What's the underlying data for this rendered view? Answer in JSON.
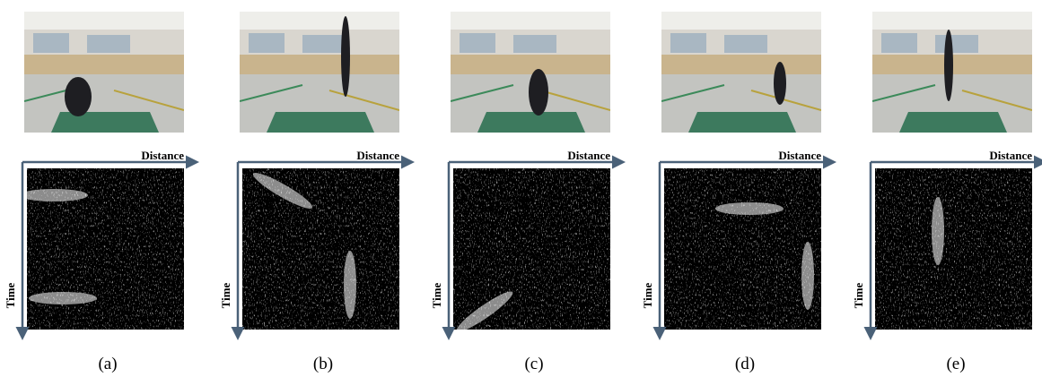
{
  "panels": [
    {
      "axis_x": "Distance",
      "axis_y": "Time",
      "caption": "(a)"
    },
    {
      "axis_x": "Distance",
      "axis_y": "Time",
      "caption": "(b)"
    },
    {
      "axis_x": "Distance",
      "axis_y": "Time",
      "caption": "(c)"
    },
    {
      "axis_x": "Distance",
      "axis_y": "Time",
      "caption": "(d)"
    },
    {
      "axis_x": "Distance",
      "axis_y": "Time",
      "caption": "(e)"
    }
  ]
}
